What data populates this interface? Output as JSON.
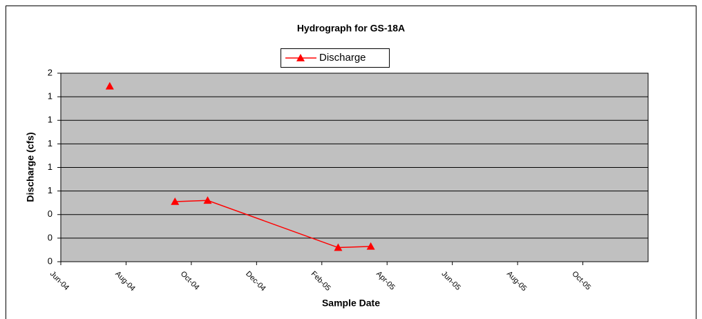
{
  "chart_data": {
    "type": "line",
    "title": "Hydrograph for GS-18A",
    "x_label": "Sample Date",
    "y_label": "Discharge (cfs)",
    "x": [
      "2004-07",
      null,
      "2004-09",
      "2004-10",
      "2005-02",
      "2005-03"
    ],
    "series": [
      {
        "name": "Discharge",
        "color": "#ff0000",
        "values": [
          1.49,
          null,
          0.51,
          0.52,
          0.12,
          0.13
        ]
      }
    ],
    "xlim": [
      "2004-06",
      "2005-12"
    ],
    "xticks": [
      {
        "value": "2004-06",
        "label": "Jun-04"
      },
      {
        "value": "2004-08",
        "label": "Aug-04"
      },
      {
        "value": "2004-10",
        "label": "Oct-04"
      },
      {
        "value": "2004-12",
        "label": "Dec-04"
      },
      {
        "value": "2005-02",
        "label": "Feb-05"
      },
      {
        "value": "2005-04",
        "label": "Apr-05"
      },
      {
        "value": "2005-06",
        "label": "Jun-05"
      },
      {
        "value": "2005-08",
        "label": "Aug-05"
      },
      {
        "value": "2005-10",
        "label": "Oct-05"
      }
    ],
    "ylim": [
      0,
      1.6
    ],
    "yticks": [
      0,
      {
        "value": 0.2,
        "label": "0"
      },
      {
        "value": 0.4,
        "label": "0"
      },
      {
        "value": 0.6,
        "label": "1"
      },
      {
        "value": 0.8,
        "label": "1"
      },
      1,
      {
        "value": 1.2,
        "label": "1"
      },
      {
        "value": 1.4,
        "label": "1"
      },
      {
        "value": 1.6,
        "label": "2"
      }
    ],
    "grid": true,
    "legend": "top",
    "plot_background": "#c0c0c0"
  }
}
